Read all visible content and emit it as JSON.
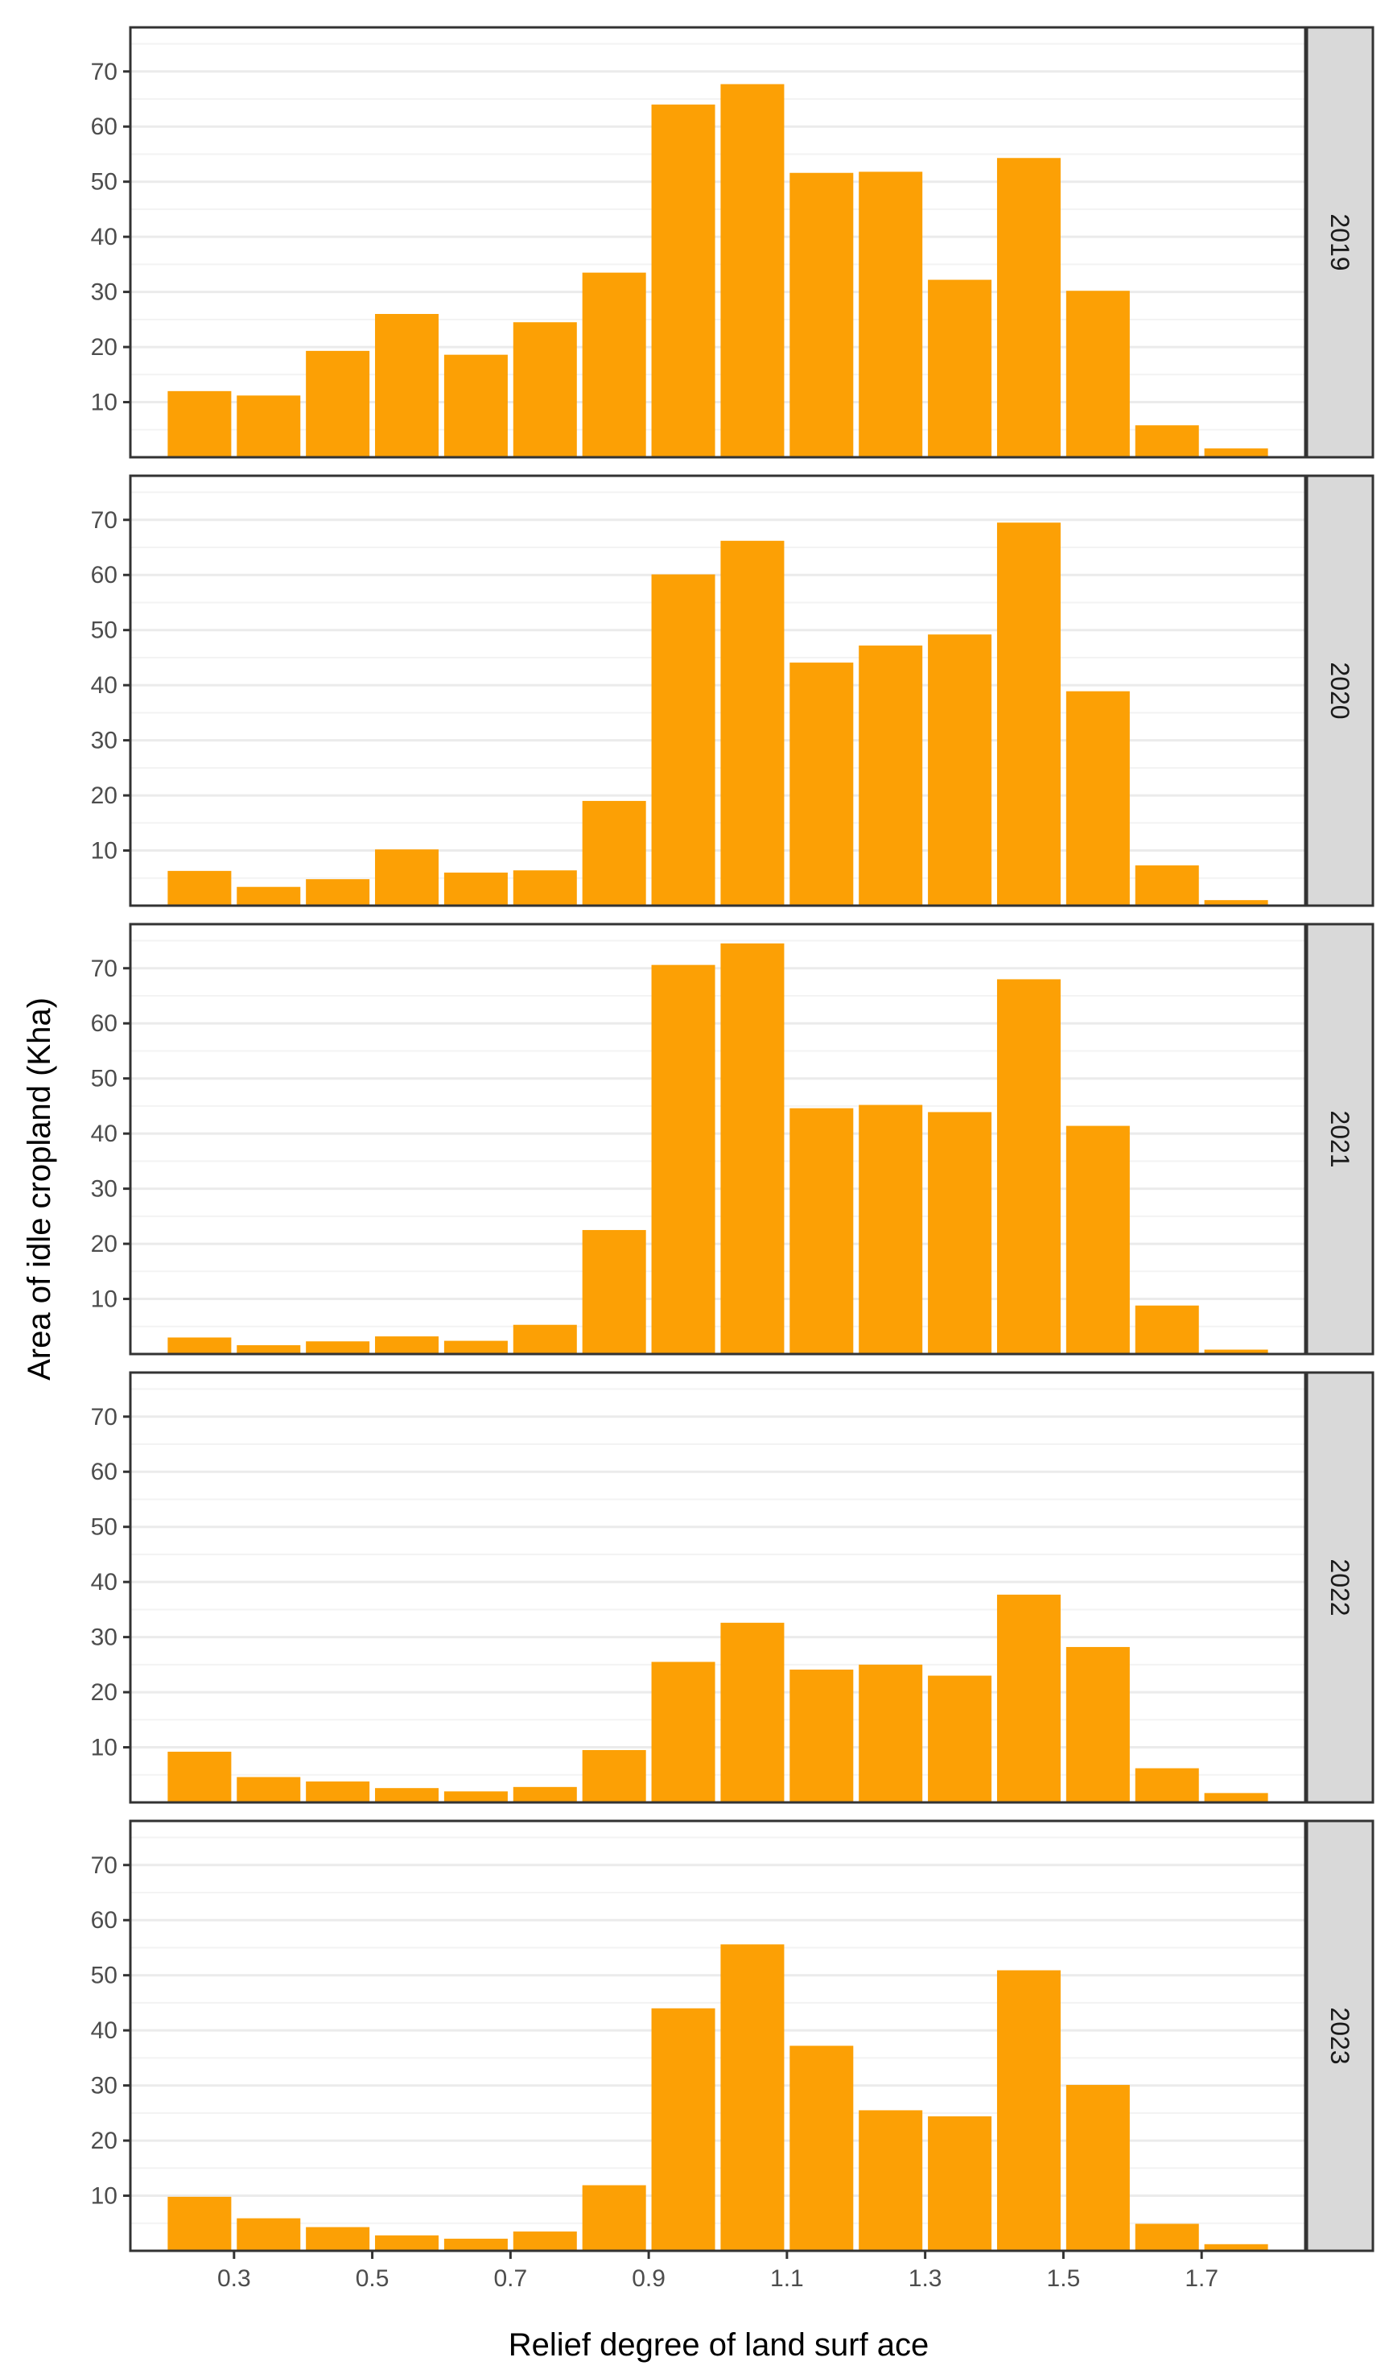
{
  "chart_data": {
    "type": "bar",
    "layout": "facet-rows",
    "ylabel": "Area of idle cropland (Kha)",
    "xlabel": "Relief degree of land surf ace",
    "x": [
      0.25,
      0.35,
      0.45,
      0.55,
      0.65,
      0.75,
      0.85,
      0.95,
      1.05,
      1.15,
      1.25,
      1.35,
      1.45,
      1.55,
      1.65,
      1.75
    ],
    "xlim": [
      0.15,
      1.85
    ],
    "x_ticks": [
      0.3,
      0.5,
      0.7,
      0.9,
      1.1,
      1.3,
      1.5,
      1.7
    ],
    "x_tick_labels": [
      "0.3",
      "0.5",
      "0.7",
      "0.9",
      "1.1",
      "1.3",
      "1.5",
      "1.7"
    ],
    "ylim": [
      0,
      78
    ],
    "y_ticks": [
      10,
      20,
      30,
      40,
      50,
      60,
      70
    ],
    "y_tick_labels": [
      "10",
      "20",
      "30",
      "40",
      "50",
      "60",
      "70"
    ],
    "grid": true,
    "bar_color": "#FCA005",
    "panels": [
      {
        "label": "2019",
        "values": [
          12,
          11.2,
          19.3,
          26,
          18.6,
          24.5,
          33.5,
          64,
          67.7,
          51.6,
          51.8,
          32.2,
          54.3,
          30.2,
          5.8,
          1.6
        ]
      },
      {
        "label": "2020",
        "values": [
          6.3,
          3.4,
          4.8,
          10.2,
          6,
          6.4,
          19,
          60.1,
          66.2,
          44.1,
          47.2,
          49.2,
          69.5,
          38.9,
          7.3,
          1
        ]
      },
      {
        "label": "2021",
        "values": [
          3,
          1.6,
          2.3,
          3.2,
          2.4,
          5.3,
          22.5,
          70.6,
          74.5,
          44.6,
          45.2,
          43.9,
          68,
          41.4,
          8.8,
          0.8
        ]
      },
      {
        "label": "2022",
        "values": [
          9.2,
          4.6,
          3.8,
          2.6,
          2,
          2.8,
          9.5,
          25.5,
          32.6,
          24.1,
          25,
          23,
          37.7,
          28.2,
          6.2,
          1.7
        ]
      },
      {
        "label": "2023",
        "values": [
          9.8,
          5.9,
          4.3,
          2.8,
          2.2,
          3.5,
          11.9,
          44,
          55.6,
          37.2,
          25.5,
          24.4,
          50.9,
          30.1,
          4.9,
          1.2
        ]
      }
    ]
  }
}
